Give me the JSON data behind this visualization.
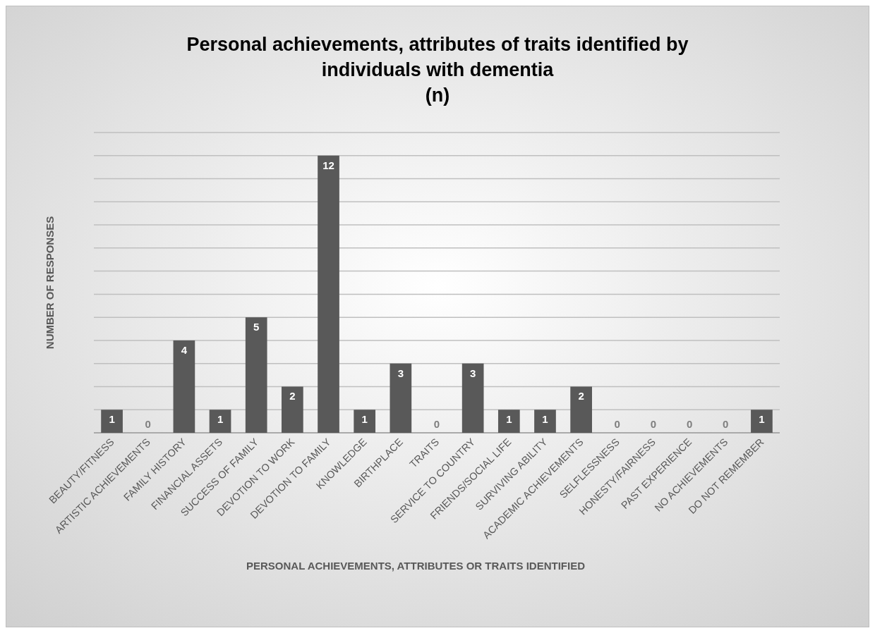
{
  "chart_data": {
    "type": "bar",
    "title": "Personal achievements, attributes of traits identified by individuals with dementia",
    "subtitle": "(n)",
    "xlabel": "PERSONAL ACHIEVEMENTS, ATTRIBUTES OR TRAITS IDENTIFIED",
    "ylabel": "NUMBER OF RESPONSES",
    "categories": [
      "BEAUTY/FITNESS",
      "ARTISTIC ACHIEVEMENTS",
      "FAMILY HISTORY",
      "FINANCIAL ASSETS",
      "SUCCESS OF FAMILY",
      "DEVOTION TO WORK",
      "DEVOTION TO FAMILY",
      "KNOWLEDGE",
      "BIRTHPLACE",
      "TRAITS",
      "SERVICE TO COUNTRY",
      "FRIENDS/SOCIAL LIFE",
      "SURVIVING ABILITY",
      "ACADEMIC ACHIEVEMENTS",
      "SELFLESSNESS",
      "HONESTY/FAIRNESS",
      "PAST EXPERIENCE",
      "NO ACHIEVEMENTS",
      "DO NOT REMEMBER"
    ],
    "values": [
      1,
      0,
      4,
      1,
      5,
      2,
      12,
      1,
      3,
      0,
      3,
      1,
      1,
      2,
      0,
      0,
      0,
      0,
      1
    ],
    "color": "#595959",
    "ylim": [
      0,
      13
    ],
    "yticks": [
      {
        "value": 0,
        "label": null
      },
      {
        "value": 1,
        "label": null
      },
      {
        "value": 2,
        "label": null
      },
      {
        "value": 3,
        "label": null
      },
      {
        "value": 4,
        "label": null
      },
      {
        "value": 5,
        "label": null
      },
      {
        "value": 6,
        "label": null
      },
      {
        "value": 7,
        "label": null
      },
      {
        "value": 8,
        "label": null
      },
      {
        "value": 9,
        "label": null
      },
      {
        "value": 10,
        "label": null
      },
      {
        "value": 11,
        "label": null
      },
      {
        "value": 12,
        "label": null
      },
      {
        "value": 13,
        "label": null
      }
    ],
    "grid": "y",
    "tick_labels": "x",
    "data_labels": true
  }
}
